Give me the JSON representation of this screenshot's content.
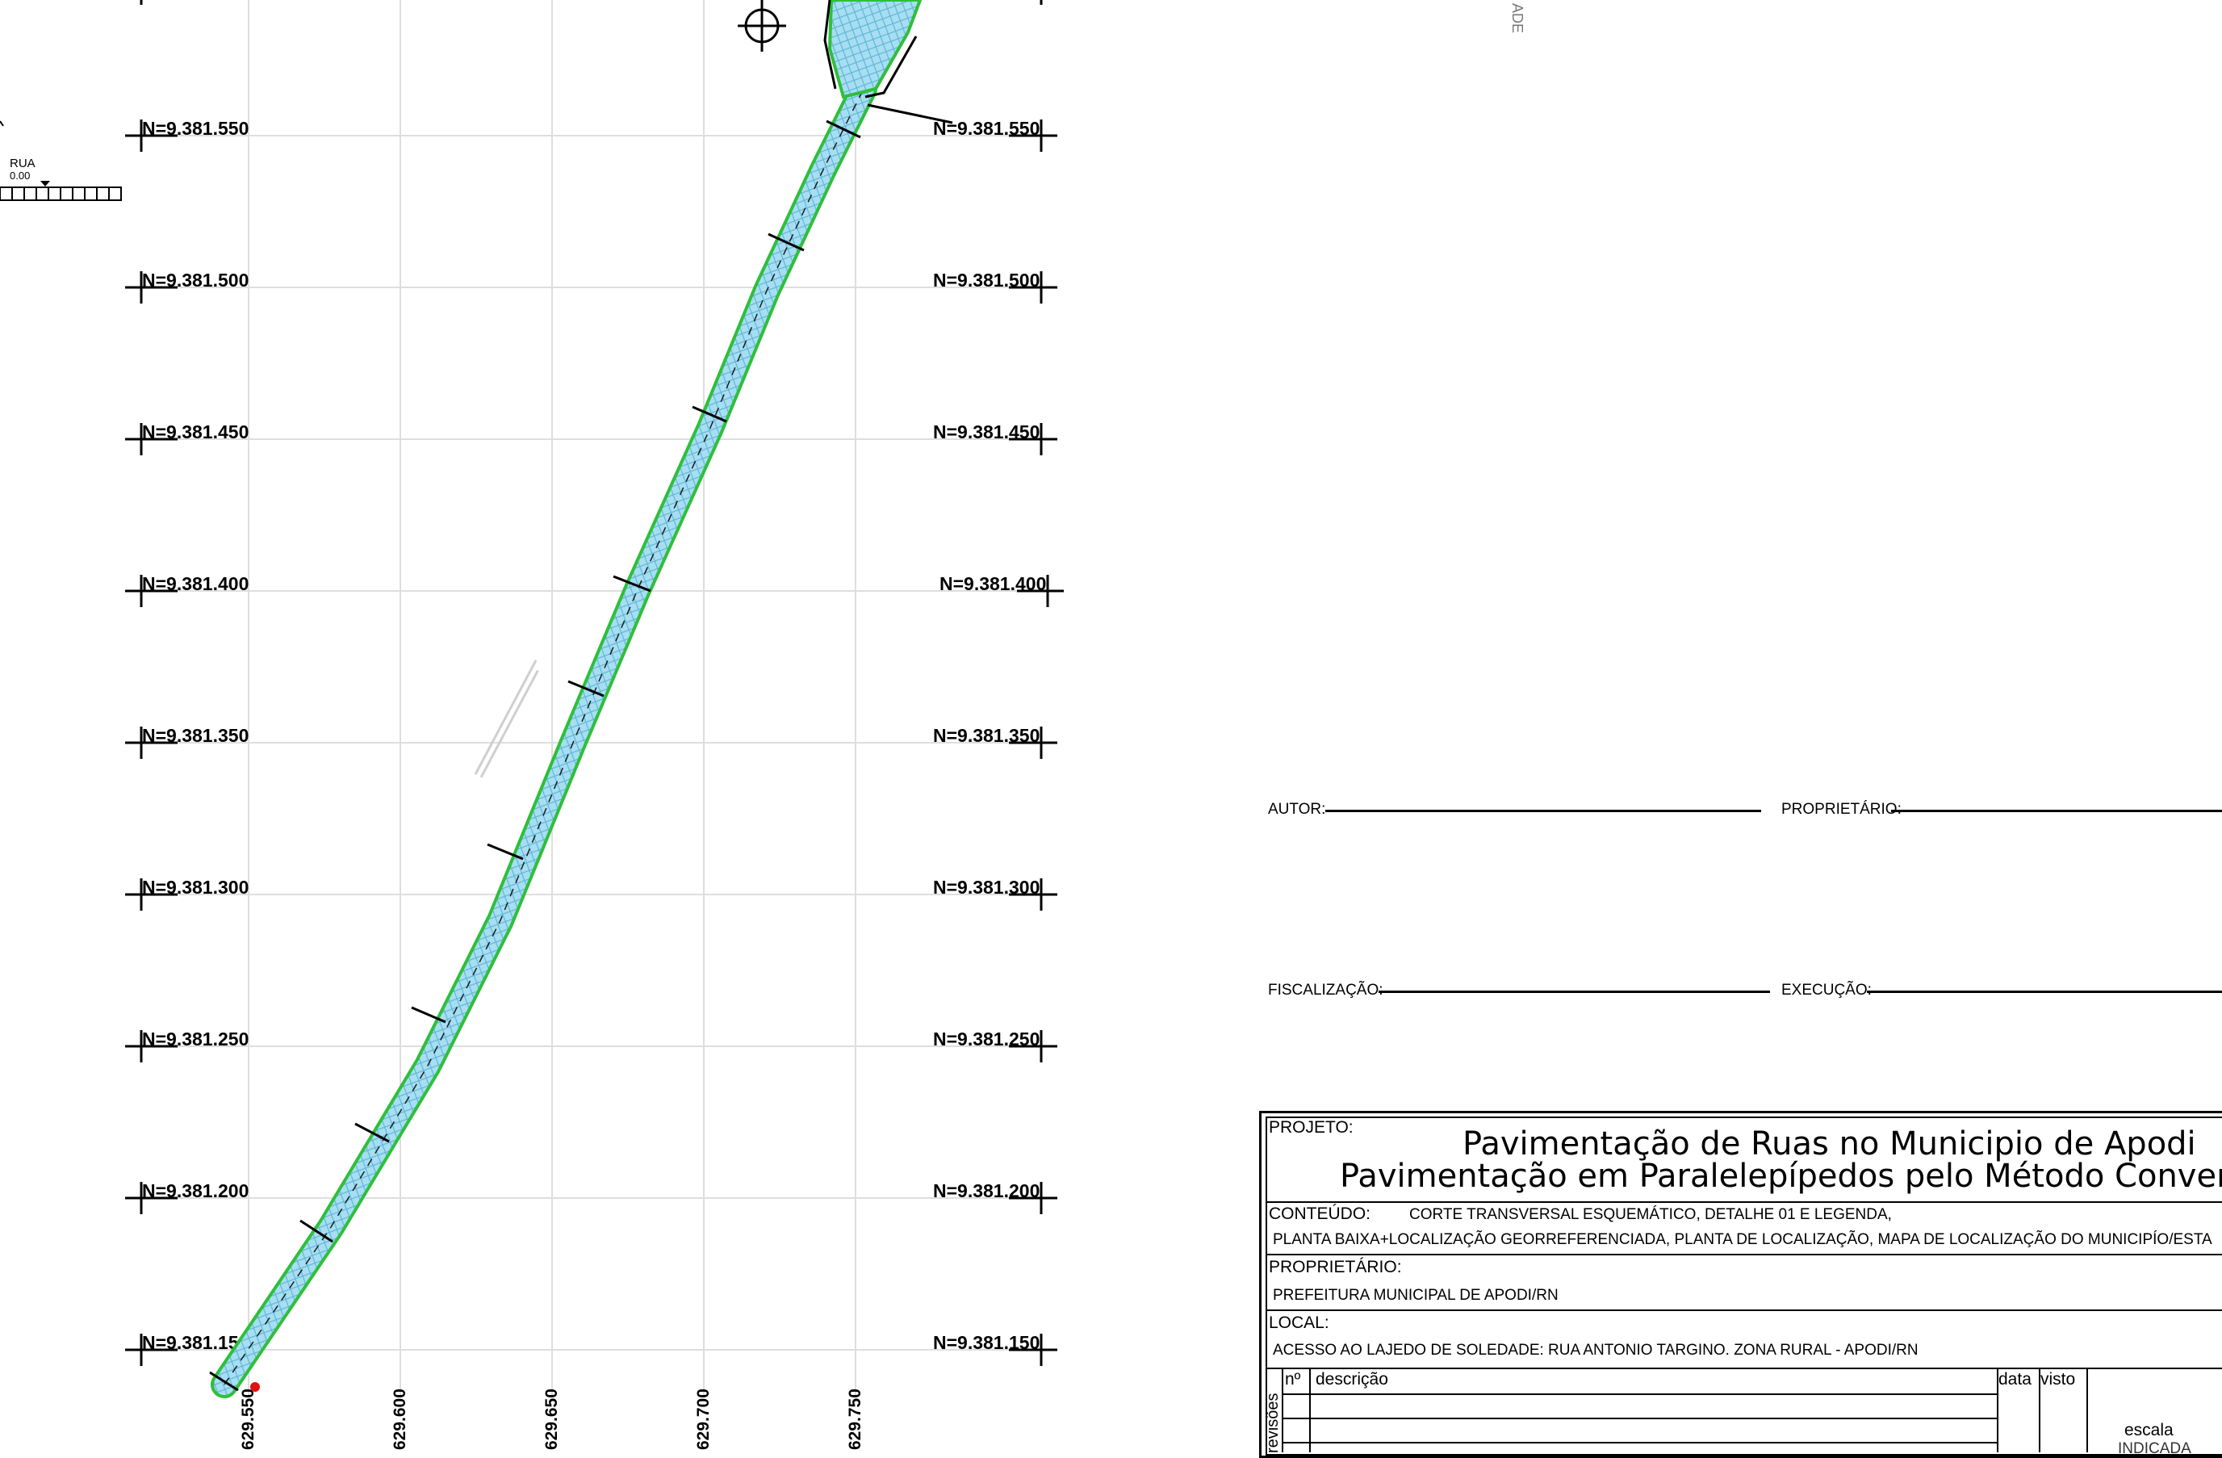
{
  "grid": {
    "north_labels": [
      "N=9.381.550",
      "N=9.381.500",
      "N=9.381.450",
      "N=9.381.400",
      "N=9.381.350",
      "N=9.381.300",
      "N=9.381.250",
      "N=9.381.200",
      "N=9.381.150"
    ],
    "east_labels": [
      "629.550",
      "629.600",
      "629.650",
      "629.700",
      "629.750"
    ]
  },
  "side": {
    "street_label": "RUA",
    "street_level": "0.00",
    "vertical_text": "ADE"
  },
  "signatures": {
    "autor": "AUTOR:",
    "proprietario": "PROPRIETÁRIO:",
    "fiscalizacao": "FISCALIZAÇÃO:",
    "execucao": "EXECUÇÃO:"
  },
  "title_block": {
    "projeto_label": "PROJETO:",
    "title_line1": "Pavimentação de Ruas no Municipio de Apodi",
    "title_line2": "Pavimentação em Paralelepípedos pelo Método Convencio",
    "conteudo_label": "CONTEÚDO:",
    "conteudo_line1": "CORTE TRANSVERSAL ESQUEMÁTICO, DETALHE 01 E LEGENDA,",
    "conteudo_line2": "PLANTA BAIXA+LOCALIZAÇÃO GEORREFERENCIADA, PLANTA DE LOCALIZAÇÃO, MAPA DE LOCALIZAÇÃO DO MUNICIPÍO/ESTA",
    "proprietario_label": "PROPRIETÁRIO:",
    "proprietario_value": "PREFEITURA MUNICIPAL DE APODI/RN",
    "local_label": "LOCAL:",
    "local_value": "ACESSO AO LAJEDO DE SOLEDADE: RUA ANTONIO TARGINO. ZONA RURAL - APODI/RN",
    "revisoes_label": "revisões",
    "col_numero": "nº",
    "col_descricao": "descrição",
    "col_data": "data",
    "col_visto": "visto",
    "escala_label": "escala",
    "escala_value": "INDICADA"
  },
  "colors": {
    "road_fill": "#9fdcf0",
    "road_edge": "#2fbf3a",
    "grid": "#d9d9d9",
    "marker": "#e01010"
  }
}
